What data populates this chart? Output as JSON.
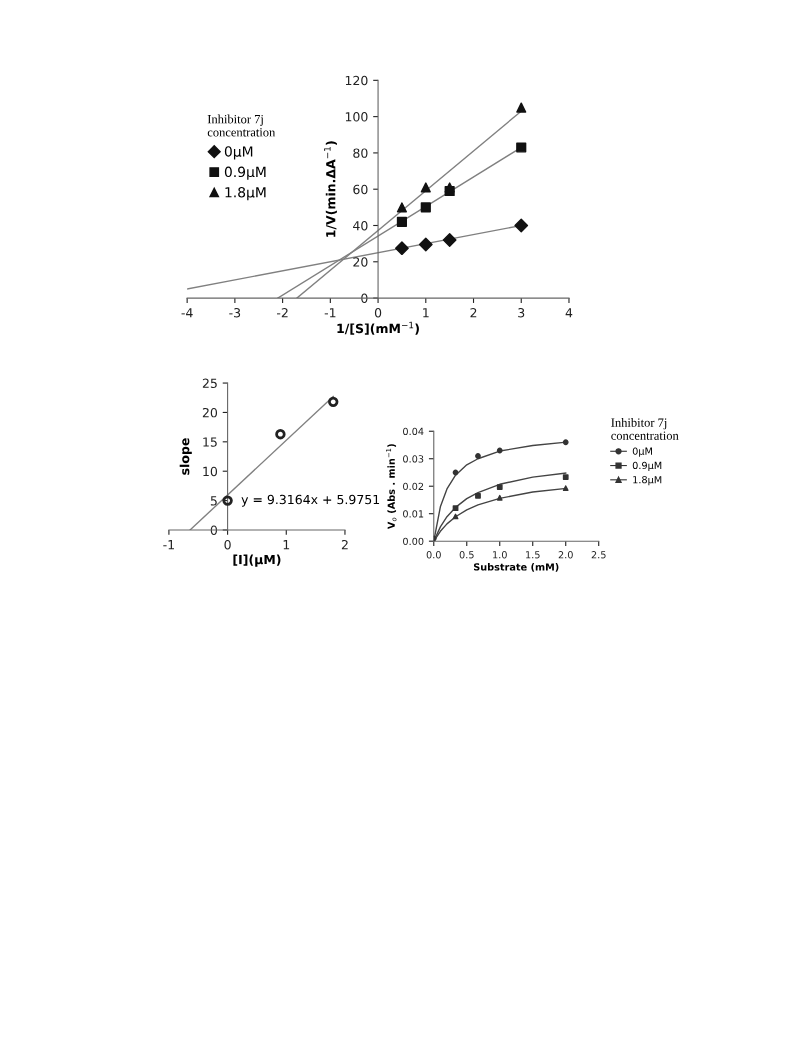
{
  "chart_data": [
    {
      "type": "scatter",
      "xlabel": "1/[S](mM$^{−1}$)",
      "ylabel": "1/V(min.ΔA$^{−1}$)",
      "legend_title": "Inhibitor 7j\nconcentration",
      "xlim": [
        -4,
        4
      ],
      "xticks": [
        -4,
        -3,
        -2,
        -1,
        0,
        1,
        2,
        3,
        4
      ],
      "ylim": [
        0,
        120
      ],
      "yticks": [
        0,
        20,
        40,
        60,
        80,
        100,
        120
      ],
      "grid": false,
      "legend": "top left",
      "series": [
        {
          "name": "0μM",
          "color": "#111111",
          "marker": "diamond",
          "x": [
            0.5,
            1,
            1.5,
            3
          ],
          "values": [
            27.5,
            29.5,
            32,
            40
          ]
        },
        {
          "name": "0.9μM",
          "color": "#111111",
          "marker": "square",
          "x": [
            0.5,
            1,
            1.5,
            3
          ],
          "values": [
            42,
            50,
            59,
            83
          ]
        },
        {
          "name": "1.8μM",
          "color": "#111111",
          "marker": "triangle",
          "x": [
            0.5,
            1,
            1.5,
            3
          ],
          "values": [
            50,
            61,
            61,
            105
          ]
        },
        {
          "type": "line",
          "color": "#808080",
          "x": [
            -4,
            3
          ],
          "values": [
            5,
            40
          ]
        },
        {
          "type": "line",
          "color": "#808080",
          "x": [
            -2.1,
            3
          ],
          "values": [
            0,
            83
          ]
        },
        {
          "type": "line",
          "color": "#808080",
          "x": [
            -1.7,
            3
          ],
          "values": [
            0,
            103
          ]
        }
      ]
    },
    {
      "type": "scatter",
      "xlabel": "[I](μM)",
      "ylabel": "slope",
      "xlim": [
        -1,
        2
      ],
      "xticks": [
        -1,
        0,
        1,
        2
      ],
      "ylim": [
        0,
        25
      ],
      "yticks": [
        0,
        5,
        10,
        15,
        20,
        25
      ],
      "grid": false,
      "legend": false,
      "annotations": [
        "y = 9.3164x + 5.9751"
      ],
      "series": [
        {
          "color": "#222222",
          "marker": "circle",
          "x": [
            0,
            0.9,
            1.8
          ],
          "values": [
            5,
            16.3,
            21.8
          ]
        },
        {
          "type": "line",
          "color": "#808080",
          "x": [
            -0.64,
            1.8
          ],
          "values": [
            0,
            22.7
          ]
        }
      ]
    },
    {
      "type": "scatter",
      "xlabel": "Substrate (mM)",
      "ylabel": "V$_{o}$ (Abs . min$^{−1}$)",
      "legend_title": "Inhibitor 7j\nconcentration",
      "xlim": [
        0,
        2.5
      ],
      "xticks": [
        {
          "value": 0,
          "label": "0.0"
        },
        0.5,
        {
          "value": 1,
          "label": "1.0"
        },
        1.5,
        {
          "value": 2,
          "label": "2.0"
        },
        2.5
      ],
      "ylim": [
        0,
        0.04
      ],
      "yticks": [
        {
          "value": 0,
          "label": "0.00"
        },
        0.01,
        0.02,
        0.03,
        {
          "value": 0.04,
          "label": "0.04"
        }
      ],
      "grid": false,
      "legend": "right",
      "series": [
        {
          "name": "0μM",
          "color": "#333333",
          "marker": "circle",
          "x": [
            0,
            0.33,
            0.67,
            1,
            2
          ],
          "values": [
            0.001,
            0.025,
            0.031,
            0.033,
            0.036
          ]
        },
        {
          "name": "0.9μM",
          "color": "#333333",
          "marker": "square",
          "x": [
            0.33,
            0.67,
            1,
            2
          ],
          "values": [
            0.012,
            0.0165,
            0.0197,
            0.0233
          ]
        },
        {
          "name": "1.8μM",
          "color": "#333333",
          "marker": "triangle",
          "x": [
            0.33,
            1,
            2
          ],
          "values": [
            0.009,
            0.0158,
            0.0193
          ]
        },
        {
          "type": "line",
          "color": "#444444",
          "x": [
            0,
            0.1,
            0.2,
            0.33,
            0.5,
            0.67,
            1,
            1.5,
            2
          ],
          "values": [
            0,
            0.0125,
            0.019,
            0.024,
            0.0278,
            0.03,
            0.0328,
            0.0348,
            0.036
          ]
        },
        {
          "type": "line",
          "color": "#444444",
          "x": [
            0,
            0.1,
            0.2,
            0.33,
            0.5,
            0.67,
            1,
            1.5,
            2
          ],
          "values": [
            0,
            0.0052,
            0.0089,
            0.0123,
            0.0155,
            0.0177,
            0.0207,
            0.0233,
            0.0248
          ]
        },
        {
          "type": "line",
          "color": "#444444",
          "x": [
            0,
            0.1,
            0.2,
            0.33,
            0.5,
            0.67,
            1,
            1.5,
            2
          ],
          "values": [
            0,
            0.0036,
            0.0063,
            0.0089,
            0.0114,
            0.0132,
            0.0156,
            0.0179,
            0.0192
          ]
        }
      ]
    }
  ]
}
